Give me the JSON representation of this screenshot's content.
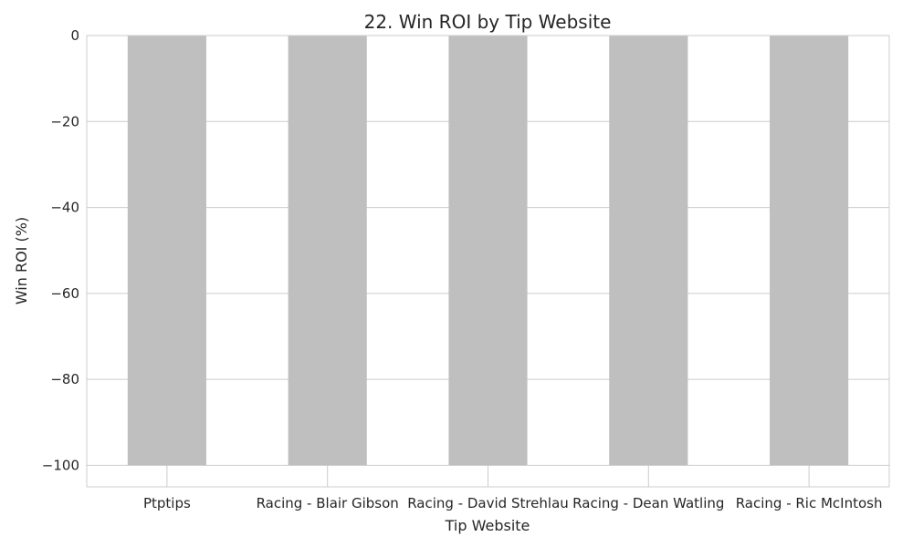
{
  "chart_data": {
    "type": "bar",
    "title": "22. Win ROI by Tip Website",
    "xlabel": "Tip Website",
    "ylabel": "Win ROI (%)",
    "categories": [
      "Ptptips",
      "Racing - Blair Gibson",
      "Racing - David Strehlau",
      "Racing - Dean Watling",
      "Racing - Ric McIntosh"
    ],
    "values": [
      -100,
      -100,
      -100,
      -100,
      -100
    ],
    "ylim": [
      -105,
      0
    ],
    "yticks": [
      0,
      -20,
      -40,
      -60,
      -80,
      -100
    ],
    "ytick_labels": [
      "0",
      "−20",
      "−40",
      "−60",
      "−80",
      "−100"
    ],
    "bar_color": "#bfbfbf",
    "grid": true,
    "legend": "none"
  }
}
